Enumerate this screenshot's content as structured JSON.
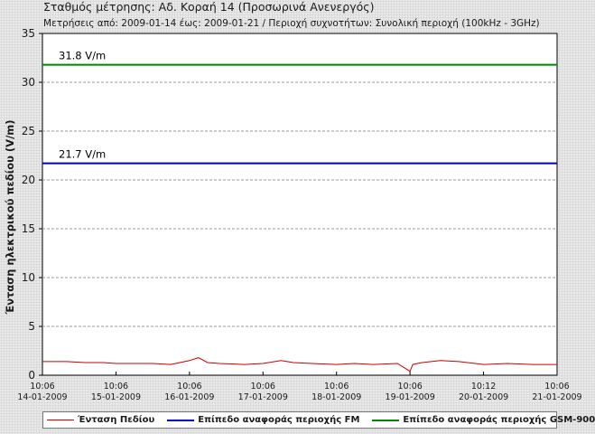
{
  "chart_data": {
    "type": "line",
    "title": "Σταθμός μέτρησης: Αδ. Κοραή 14 (Προσωρινά Ανενεργός)",
    "subtitle": "Μετρήσεις από: 2009-01-14 έως: 2009-01-21 / Περιοχή συχνοτήτων: Συνολική περιοχή (100kHz - 3GHz)",
    "ylabel": "Ένταση ηλεκτρικού πεδίου (V/m)",
    "xlabel": "",
    "ylim": [
      0,
      35
    ],
    "yticks": [
      0,
      5,
      10,
      15,
      20,
      25,
      30,
      35
    ],
    "grid": true,
    "legend_placement": "bottom",
    "x_tick_labels": [
      {
        "time": "10:06",
        "date": "14-01-2009"
      },
      {
        "time": "10:06",
        "date": "15-01-2009"
      },
      {
        "time": "10:06",
        "date": "16-01-2009"
      },
      {
        "time": "10:06",
        "date": "17-01-2009"
      },
      {
        "time": "10:06",
        "date": "18-01-2009"
      },
      {
        "time": "10:06",
        "date": "19-01-2009"
      },
      {
        "time": "10:12",
        "date": "20-01-2009"
      },
      {
        "time": "10:06",
        "date": "21-01-2009"
      }
    ],
    "series": [
      {
        "name": "Ένταση Πεδίου",
        "color": "#cc0000",
        "x": [
          "2009-01-14 10:06",
          "2009-01-14 12:00",
          "2009-01-14 18:00",
          "2009-01-15 00:00",
          "2009-01-15 06:00",
          "2009-01-15 10:06",
          "2009-01-15 16:00",
          "2009-01-15 22:00",
          "2009-01-16 04:00",
          "2009-01-16 10:06",
          "2009-01-16 13:00",
          "2009-01-16 16:00",
          "2009-01-16 20:00",
          "2009-01-17 04:00",
          "2009-01-17 10:06",
          "2009-01-17 16:00",
          "2009-01-17 20:00",
          "2009-01-18 02:00",
          "2009-01-18 10:06",
          "2009-01-18 16:00",
          "2009-01-18 22:00",
          "2009-01-19 06:00",
          "2009-01-19 10:06",
          "2009-01-19 11:00",
          "2009-01-19 14:00",
          "2009-01-19 20:00",
          "2009-01-20 02:00",
          "2009-01-20 10:12",
          "2009-01-20 18:00",
          "2009-01-21 02:00",
          "2009-01-21 10:06"
        ],
        "y": [
          1.4,
          1.4,
          1.4,
          1.3,
          1.3,
          1.2,
          1.2,
          1.2,
          1.1,
          1.5,
          1.8,
          1.3,
          1.2,
          1.1,
          1.2,
          1.5,
          1.3,
          1.2,
          1.1,
          1.2,
          1.1,
          1.2,
          0.4,
          1.1,
          1.3,
          1.5,
          1.4,
          1.1,
          1.2,
          1.1,
          1.1
        ]
      },
      {
        "name": "Επίπεδο αναφοράς περιοχής FM",
        "color": "#0000cc",
        "x": [
          "2009-01-14 10:06",
          "2009-01-21 10:06"
        ],
        "y": [
          21.7,
          21.7
        ],
        "annotation": "21.7 V/m"
      },
      {
        "name": "Επίπεδο αναφοράς περιοχής GSM-900",
        "color": "#008800",
        "x": [
          "2009-01-14 10:06",
          "2009-01-21 10:06"
        ],
        "y": [
          31.8,
          31.8
        ],
        "annotation": "31.8 V/m"
      }
    ]
  }
}
